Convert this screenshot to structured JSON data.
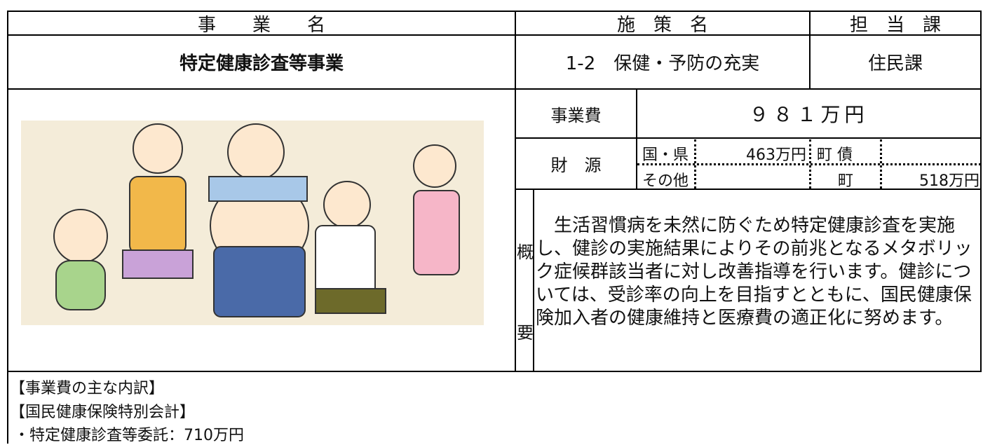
{
  "header": {
    "project_label": "事　　業　　名",
    "policy_label": "施　策　名",
    "dept_label": "担　当　課"
  },
  "project": {
    "name": "特定健康診査等事業",
    "policy": "1-2　保健・予防の充実",
    "dept": "住民課"
  },
  "cost": {
    "label": "事業費",
    "value": "９８１万円"
  },
  "funding": {
    "label": "財　源",
    "national_prefectural_label": "国・県",
    "national_prefectural_value": "463万円",
    "bond_label": "町 債",
    "other_label": "その他",
    "town_label": "町",
    "town_value": "518万円"
  },
  "overview": {
    "label_top": "概",
    "label_bottom": "要",
    "text": "　生活習慣病を未然に防ぐため特定健康診査を実施し、健診の実施結果によりその前兆となるメタボリック症候群該当者に対し改善指導を行います。健診については、受診率の向上を目指すとともに、国民健康保険加入者の健康維持と医療費の適正化に努めます。"
  },
  "breakdown": {
    "heading": "【事業費の主な内訳】",
    "account": "【国民健康保険特別会計】",
    "items": [
      "・特定健康診査等委託：710万円"
    ]
  }
}
